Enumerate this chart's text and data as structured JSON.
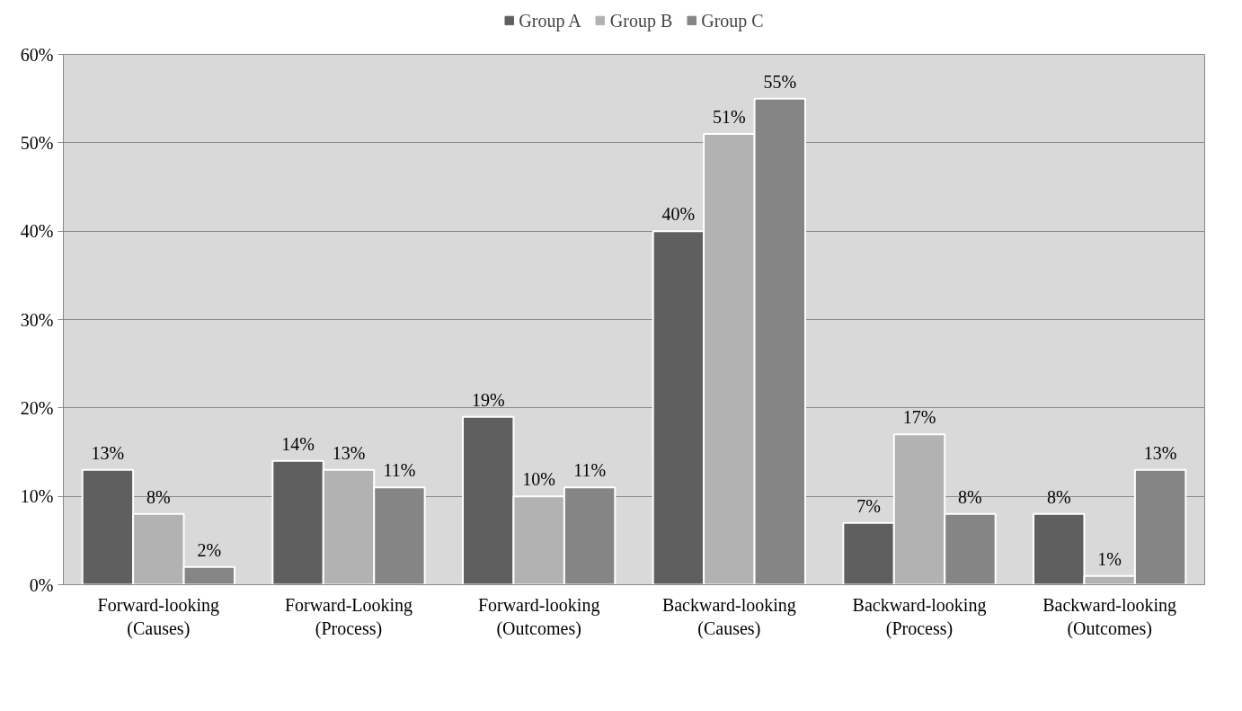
{
  "chart_data": {
    "type": "bar",
    "categories": [
      "Forward-looking\n(Causes)",
      "Forward-Looking\n(Process)",
      "Forward-looking\n(Outcomes)",
      "Backward-looking\n(Causes)",
      "Backward-looking\n(Process)",
      "Backward-looking\n(Outcomes)"
    ],
    "series": [
      {
        "name": "Group A",
        "color": "#5f5f5f",
        "values": [
          13,
          14,
          19,
          40,
          7,
          8
        ],
        "value_labels": [
          "13%",
          "14%",
          "19%",
          "40%",
          "7%",
          "8%"
        ]
      },
      {
        "name": "Group B",
        "color": "#b2b2b2",
        "values": [
          8,
          13,
          10,
          51,
          17,
          1
        ],
        "value_labels": [
          "8%",
          "13%",
          "10%",
          "51%",
          "17%",
          "1%"
        ]
      },
      {
        "name": "Group C",
        "color": "#858585",
        "values": [
          2,
          11,
          11,
          55,
          8,
          13
        ],
        "value_labels": [
          "2%",
          "11%",
          "11%",
          "55%",
          "8%",
          "13%"
        ]
      }
    ],
    "ylim": [
      0,
      60
    ],
    "yticks": [
      {
        "value": 0,
        "label": "0%"
      },
      {
        "value": 10,
        "label": "10%"
      },
      {
        "value": 20,
        "label": "20%"
      },
      {
        "value": 30,
        "label": "30%"
      },
      {
        "value": 40,
        "label": "40%"
      },
      {
        "value": 50,
        "label": "50%"
      },
      {
        "value": 60,
        "label": "60%"
      }
    ],
    "grid": "y",
    "legend": "top"
  }
}
